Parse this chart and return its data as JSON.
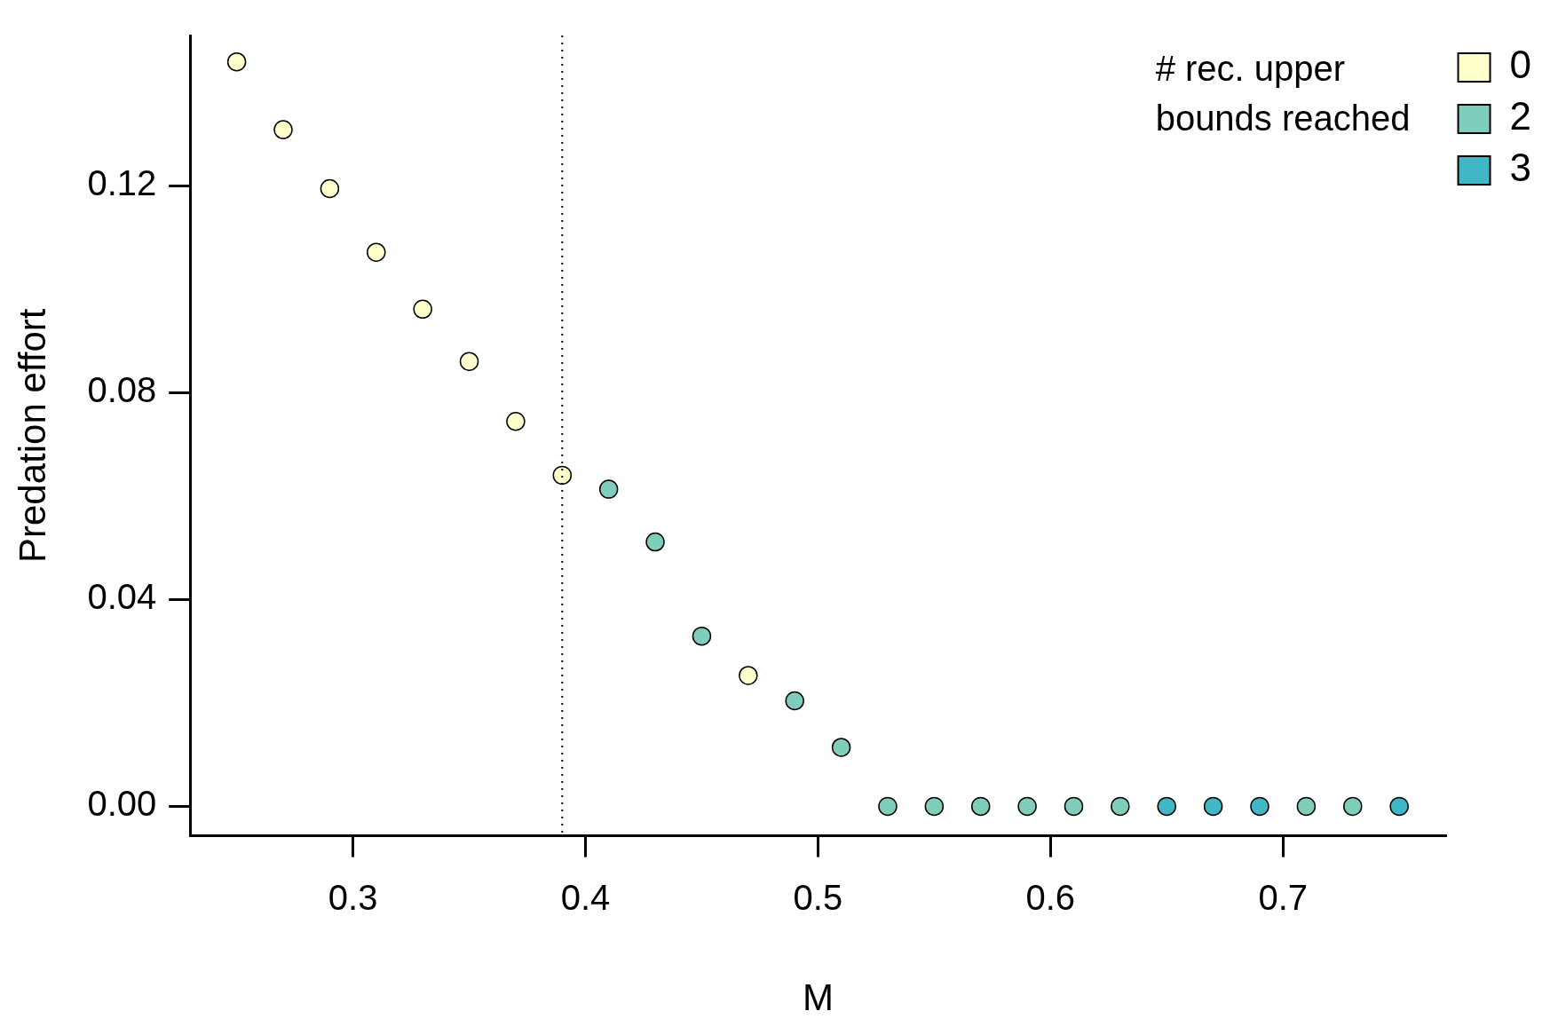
{
  "chart_data": {
    "type": "scatter",
    "xlabel": "M",
    "ylabel": "Predation effort",
    "legend_title": "# rec. upper bounds reached",
    "legend": "top right",
    "marker": "circle",
    "grid": false,
    "xlim": [
      0.23,
      0.77
    ],
    "xticks": [
      0.3,
      0.4,
      0.5,
      0.6,
      0.7
    ],
    "ylim": [
      -0.0057,
      0.149
    ],
    "yticks": [
      {
        "value": 0,
        "label": "0.00"
      },
      {
        "value": 0.04,
        "label": "0.04"
      },
      {
        "value": 0.08,
        "label": "0.08"
      },
      {
        "value": 0.12,
        "label": "0.12"
      }
    ],
    "ref_lines": [
      {
        "axis": "x",
        "value": 0.39,
        "color": "#000000",
        "line_style": "dotted"
      }
    ],
    "series": [
      {
        "name": "0",
        "color": "#ffffcc",
        "x": [
          0.25,
          0.27,
          0.29,
          0.31,
          0.33,
          0.35,
          0.37,
          0.39,
          0.47
        ],
        "values": [
          0.1439,
          0.1308,
          0.1194,
          0.1071,
          0.0961,
          0.086,
          0.0744,
          0.064,
          0.0253
        ]
      },
      {
        "name": "2",
        "color": "#7fcdbb",
        "x": [
          0.41,
          0.43,
          0.45,
          0.49,
          0.51,
          0.53,
          0.55,
          0.57,
          0.59,
          0.61,
          0.63,
          0.71,
          0.73
        ],
        "values": [
          0.0613,
          0.0511,
          0.0329,
          0.0204,
          0.0114,
          0,
          0,
          0,
          0,
          0,
          0,
          0,
          0
        ]
      },
      {
        "name": "3",
        "color": "#41b6c4",
        "x": [
          0.65,
          0.67,
          0.69,
          0.75
        ],
        "values": [
          0,
          0,
          0,
          0
        ]
      }
    ]
  }
}
